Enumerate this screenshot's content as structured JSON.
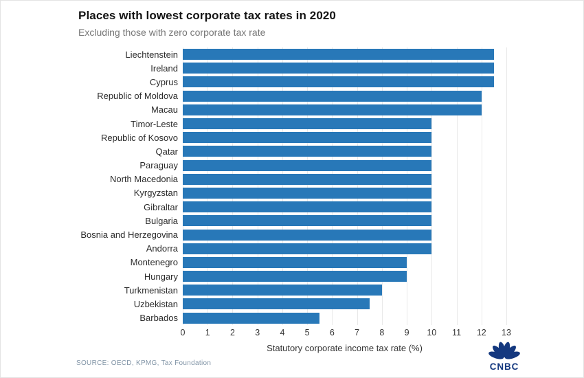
{
  "header": {
    "title": "Places with lowest corporate tax rates in 2020",
    "subtitle": "Excluding those with zero corporate tax rate"
  },
  "chart_data": {
    "type": "bar",
    "orientation": "horizontal",
    "categories": [
      "Liechtenstein",
      "Ireland",
      "Cyprus",
      "Republic of Moldova",
      "Macau",
      "Timor-Leste",
      "Republic of Kosovo",
      "Qatar",
      "Paraguay",
      "North Macedonia",
      "Kyrgyzstan",
      "Gibraltar",
      "Bulgaria",
      "Bosnia and Herzegovina",
      "Andorra",
      "Montenegro",
      "Hungary",
      "Turkmenistan",
      "Uzbekistan",
      "Barbados"
    ],
    "values": [
      12.5,
      12.5,
      12.5,
      12,
      12,
      10,
      10,
      10,
      10,
      10,
      10,
      10,
      10,
      10,
      10,
      9,
      9,
      8,
      7.5,
      5.5
    ],
    "title": "Places with lowest corporate tax rates in 2020",
    "subtitle": "Excluding those with zero corporate tax rate",
    "xlabel": "Statutory corporate income tax rate (%)",
    "ylabel": "",
    "xlim": [
      0,
      13
    ],
    "xticks": [
      0,
      1,
      2,
      3,
      4,
      5,
      6,
      7,
      8,
      9,
      10,
      11,
      12,
      13
    ],
    "grid": "vertical-light"
  },
  "colors": {
    "bar": "#2878b8",
    "gridline": "#e9e9e9",
    "title_text": "#141414",
    "subtitle_text": "#767676",
    "source_text": "#8194a6",
    "logo_navy": "#14387f"
  },
  "footer": {
    "source": "SOURCE: OECD, KPMG, Tax Foundation",
    "logo_text": "CNBC"
  }
}
